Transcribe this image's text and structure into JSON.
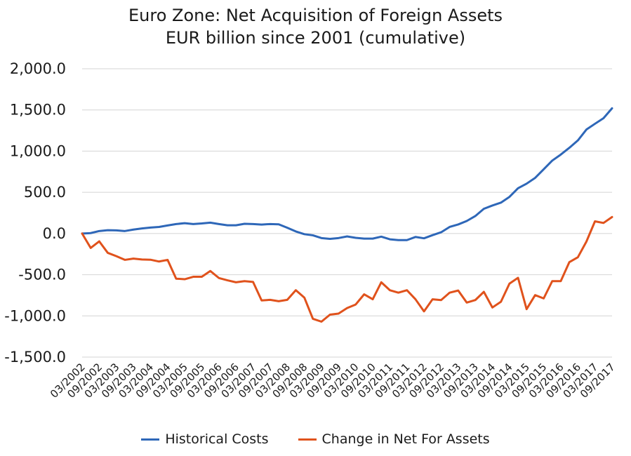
{
  "chart_data": {
    "type": "line",
    "title": [
      "Euro Zone: Net Acquisition of Foreign Assets",
      "EUR billion since 2001 (cumulative)"
    ],
    "xlabel": "",
    "ylabel": "",
    "ylim": [
      -1500,
      2000
    ],
    "y_ticks": [
      "2,000.0",
      "1,500.0",
      "1,000.0",
      "500.0",
      "0.0",
      "-500.0",
      "-1,000.0",
      "-1,500.0"
    ],
    "x_tick_labels": [
      "03/2002",
      "09/2002",
      "03/2003",
      "09/2003",
      "03/2004",
      "09/2004",
      "03/2005",
      "09/2005",
      "03/2006",
      "09/2006",
      "03/2007",
      "09/2007",
      "03/2008",
      "09/2008",
      "03/2009",
      "09/2009",
      "03/2010",
      "09/2010",
      "03/2011",
      "09/2011",
      "03/2012",
      "09/2012",
      "03/2013",
      "09/2013",
      "03/2014",
      "09/2014",
      "03/2015",
      "09/2015",
      "03/2016",
      "09/2016",
      "03/2017",
      "09/2017"
    ],
    "grid": "horizontal",
    "legend_position": "bottom",
    "series": [
      {
        "name": "Historical Costs",
        "color": "#2e67b8",
        "values": [
          0,
          5,
          30,
          40,
          38,
          30,
          48,
          62,
          72,
          80,
          98,
          115,
          125,
          115,
          122,
          132,
          115,
          100,
          100,
          118,
          115,
          108,
          115,
          112,
          70,
          25,
          -8,
          -22,
          -55,
          -65,
          -55,
          -35,
          -52,
          -62,
          -62,
          -38,
          -70,
          -80,
          -80,
          -42,
          -58,
          -20,
          15,
          80,
          110,
          152,
          212,
          300,
          340,
          375,
          445,
          550,
          605,
          675,
          780,
          885,
          958,
          1040,
          1130,
          1262,
          1332,
          1400,
          1520
        ]
      },
      {
        "name": "Change in Net For Assets",
        "color": "#e0521c",
        "values": [
          0,
          -175,
          -95,
          -235,
          -275,
          -320,
          -305,
          -315,
          -318,
          -340,
          -320,
          -548,
          -555,
          -525,
          -525,
          -455,
          -540,
          -568,
          -592,
          -578,
          -588,
          -812,
          -805,
          -822,
          -805,
          -688,
          -778,
          -1035,
          -1070,
          -985,
          -972,
          -905,
          -862,
          -738,
          -798,
          -592,
          -688,
          -718,
          -688,
          -798,
          -945,
          -798,
          -808,
          -718,
          -692,
          -838,
          -808,
          -708,
          -898,
          -828,
          -608,
          -538,
          -918,
          -748,
          -788,
          -578,
          -578,
          -348,
          -288,
          -98,
          148,
          128,
          200
        ]
      }
    ]
  }
}
